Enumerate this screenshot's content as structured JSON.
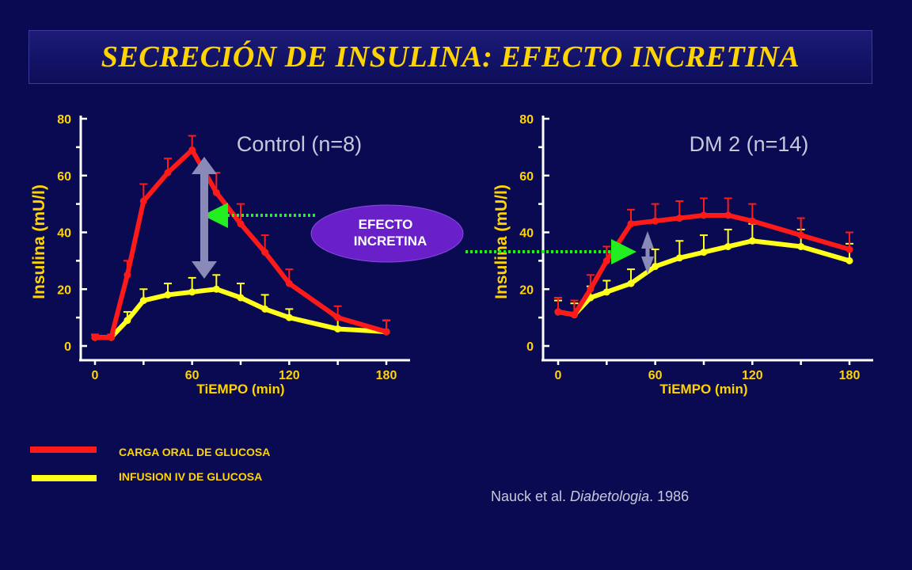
{
  "title": "SECRECIÓN DE INSULINA: EFECTO INCRETINA",
  "colors": {
    "background": "#0a0a52",
    "title_text": "#ffd400",
    "axis": "#ffffff",
    "axis_label": "#ffd400",
    "oral_series": "#ff1a1a",
    "iv_series": "#ffff1a",
    "bubble": "#6a20c8",
    "arrow_green": "#22ee22",
    "double_arrow": "#8a8ab8"
  },
  "chart_data": [
    {
      "type": "line",
      "title": "Control (n=8)",
      "xlabel": "TiEMPO (min)",
      "ylabel": "Insulina (mU/l)",
      "xlim": [
        -10,
        190
      ],
      "ylim": [
        0,
        80
      ],
      "xticks": [
        "0",
        "60",
        "120",
        "180"
      ],
      "yticks": [
        "0",
        "20",
        "40",
        "60",
        "80"
      ],
      "grid": false,
      "series": [
        {
          "name": "CARGA ORAL DE GLUCOSA",
          "x": [
            0,
            10,
            20,
            30,
            45,
            60,
            75,
            90,
            105,
            120,
            150,
            180
          ],
          "y": [
            3,
            3,
            25,
            51,
            61,
            69,
            54,
            43,
            33,
            22,
            10,
            5
          ],
          "err": [
            1,
            1,
            5,
            6,
            5,
            5,
            7,
            7,
            6,
            5,
            4,
            4
          ]
        },
        {
          "name": "INFUSION IV DE GLUCOSA",
          "x": [
            0,
            10,
            20,
            30,
            45,
            60,
            75,
            90,
            105,
            120,
            150,
            180
          ],
          "y": [
            3,
            3,
            9,
            16,
            18,
            19,
            20,
            17,
            13,
            10,
            6,
            5
          ],
          "err": [
            1,
            1,
            3,
            4,
            4,
            5,
            5,
            5,
            5,
            3,
            4,
            4
          ]
        }
      ]
    },
    {
      "type": "line",
      "title": "DM 2 (n=14)",
      "xlabel": "TiEMPO (min)",
      "ylabel": "Insulina (mU/l)",
      "xlim": [
        -10,
        190
      ],
      "ylim": [
        0,
        80
      ],
      "xticks": [
        "0",
        "60",
        "120",
        "180"
      ],
      "yticks": [
        "0",
        "20",
        "40",
        "60",
        "80"
      ],
      "grid": false,
      "series": [
        {
          "name": "CARGA ORAL DE GLUCOSA",
          "x": [
            0,
            10,
            20,
            30,
            45,
            60,
            75,
            90,
            105,
            120,
            150,
            180
          ],
          "y": [
            12,
            11,
            20,
            30,
            43,
            44,
            45,
            46,
            46,
            44,
            39,
            34
          ],
          "err": [
            5,
            5,
            5,
            5,
            5,
            6,
            6,
            6,
            6,
            6,
            6,
            6
          ]
        },
        {
          "name": "INFUSION IV DE GLUCOSA",
          "x": [
            0,
            10,
            20,
            30,
            45,
            60,
            75,
            90,
            105,
            120,
            150,
            180
          ],
          "y": [
            12,
            11,
            17,
            19,
            22,
            28,
            31,
            33,
            35,
            37,
            35,
            30
          ],
          "err": [
            4,
            4,
            4,
            4,
            5,
            6,
            6,
            6,
            6,
            6,
            6,
            6
          ]
        }
      ]
    }
  ],
  "bubble": {
    "line1": "EFECTO",
    "line2": "INCRETINA"
  },
  "legend": [
    {
      "label": "CARGA ORAL DE GLUCOSA",
      "color": "#ff1a1a"
    },
    {
      "label": "INFUSION IV DE GLUCOSA",
      "color": "#ffff1a"
    }
  ],
  "citation": {
    "authors": "Nauck et al. ",
    "journal": "Diabetologia",
    "year": ". 1986"
  }
}
